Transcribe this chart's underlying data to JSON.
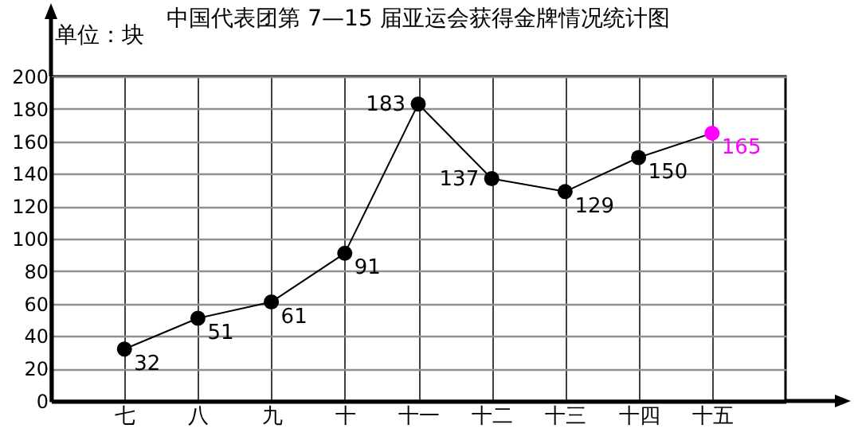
{
  "chart_data": {
    "type": "line",
    "title": "中国代表团第 7—15 届亚运会获得金牌情况统计图",
    "ylabel": "单位：块",
    "categories": [
      "七",
      "八",
      "九",
      "十",
      "十一",
      "十二",
      "十三",
      "十四",
      "十五"
    ],
    "series": [
      {
        "color": "#000000",
        "colors": [
          "#000000",
          "#000000",
          "#000000",
          "#000000",
          "#000000",
          "#000000",
          "#000000",
          "#000000",
          "#ff00ff"
        ],
        "values": [
          32,
          51,
          61,
          91,
          183,
          137,
          129,
          150,
          165
        ]
      }
    ],
    "ylim": [
      0,
      200
    ],
    "yticks": [
      0,
      20,
      40,
      60,
      80,
      100,
      120,
      140,
      160,
      180,
      200
    ],
    "grid": true,
    "marker": "circle",
    "line_style": "solid",
    "data_labels": true
  }
}
